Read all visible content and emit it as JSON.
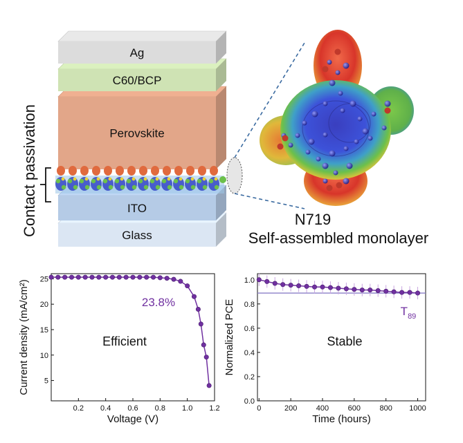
{
  "side_label": "Contact passivation",
  "layers": [
    {
      "label": "Ag",
      "color": "#dcdcdc"
    },
    {
      "label": "C60/BCP",
      "color": "#cfe3b4"
    },
    {
      "label": "Perovskite",
      "color": "#e2a689"
    },
    {
      "label": "ITO",
      "color": "#b5cbe6"
    },
    {
      "label": "Glass",
      "color": "#dbe6f3"
    }
  ],
  "molecule": {
    "name": "N719",
    "caption": "Self-assembled monolayer"
  },
  "chart_data": [
    {
      "type": "line",
      "panel_label": "Efficient",
      "annotation": "23.8%",
      "color": "#7030a0",
      "xlabel": "Voltage (V)",
      "ylabel": "Current density (mA/cm²)",
      "xlim": [
        0,
        1.2
      ],
      "ylim": [
        1,
        26
      ],
      "xticks": [
        "0.2",
        "0.4",
        "0.6",
        "0.8",
        "1.0",
        "1.2"
      ],
      "yticks": [
        "5",
        "10",
        "15",
        "20",
        "25"
      ],
      "x": [
        0.0,
        0.05,
        0.1,
        0.15,
        0.2,
        0.25,
        0.3,
        0.35,
        0.4,
        0.45,
        0.5,
        0.55,
        0.6,
        0.65,
        0.7,
        0.75,
        0.8,
        0.85,
        0.9,
        0.95,
        1.0,
        1.05,
        1.08,
        1.1,
        1.12,
        1.14,
        1.16
      ],
      "y": [
        25.3,
        25.3,
        25.3,
        25.3,
        25.3,
        25.3,
        25.3,
        25.3,
        25.3,
        25.3,
        25.3,
        25.3,
        25.3,
        25.3,
        25.3,
        25.3,
        25.2,
        25.1,
        24.9,
        24.5,
        23.6,
        21.5,
        19.0,
        16.1,
        12.0,
        9.6,
        4.0
      ]
    },
    {
      "type": "line",
      "panel_label": "Stable",
      "annotation": "T",
      "annotation_sub": "89",
      "color": "#7030a0",
      "xlabel": "Time (hours)",
      "ylabel": "Normalized PCE",
      "xlim": [
        -10,
        1050
      ],
      "ylim": [
        0,
        1.05
      ],
      "xticks": [
        "0",
        "200",
        "400",
        "600",
        "800",
        "1000"
      ],
      "yticks": [
        "0.0",
        "0.2",
        "0.4",
        "0.6",
        "0.8",
        "1.0"
      ],
      "reference_line": 0.89,
      "x": [
        0,
        50,
        100,
        150,
        200,
        250,
        300,
        350,
        400,
        450,
        500,
        550,
        600,
        650,
        700,
        750,
        800,
        850,
        900,
        950,
        1000
      ],
      "y": [
        1.0,
        0.985,
        0.97,
        0.96,
        0.955,
        0.95,
        0.945,
        0.94,
        0.94,
        0.935,
        0.93,
        0.925,
        0.92,
        0.915,
        0.915,
        0.91,
        0.905,
        0.9,
        0.895,
        0.895,
        0.89
      ]
    }
  ]
}
